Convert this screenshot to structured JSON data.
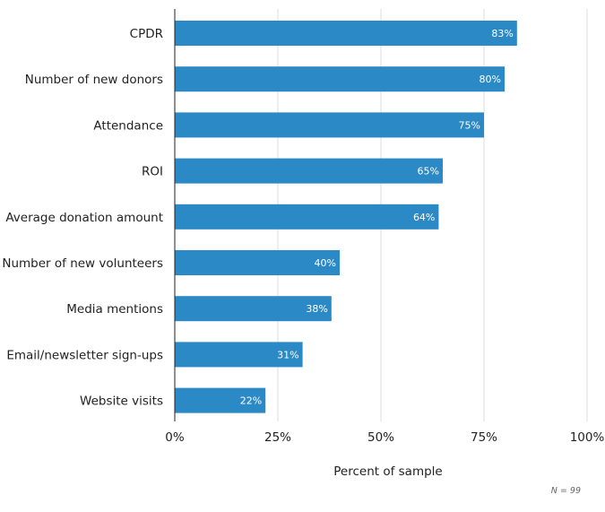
{
  "chart_data": {
    "type": "bar",
    "orientation": "horizontal",
    "categories": [
      "CPDR",
      "Number of new donors",
      "Attendance",
      "ROI",
      "Average donation amount",
      "Number of new volunteers",
      "Media mentions",
      "Email/newsletter sign-ups",
      "Website visits"
    ],
    "values": [
      83,
      80,
      75,
      65,
      64,
      40,
      38,
      31,
      22
    ],
    "value_labels": [
      "83%",
      "80%",
      "75%",
      "65%",
      "64%",
      "40%",
      "38%",
      "31%",
      "22%"
    ],
    "xlabel": "Percent of sample",
    "ylabel": "",
    "xlim": [
      0,
      100
    ],
    "x_ticks": [
      0,
      25,
      50,
      75,
      100
    ],
    "x_tick_labels": [
      "0%",
      "25%",
      "50%",
      "75%",
      "100%"
    ],
    "grid": true,
    "bar_color": "#2b89c6",
    "grid_color": "#dddddd",
    "axis_color": "#222222"
  },
  "note": "N = 99"
}
